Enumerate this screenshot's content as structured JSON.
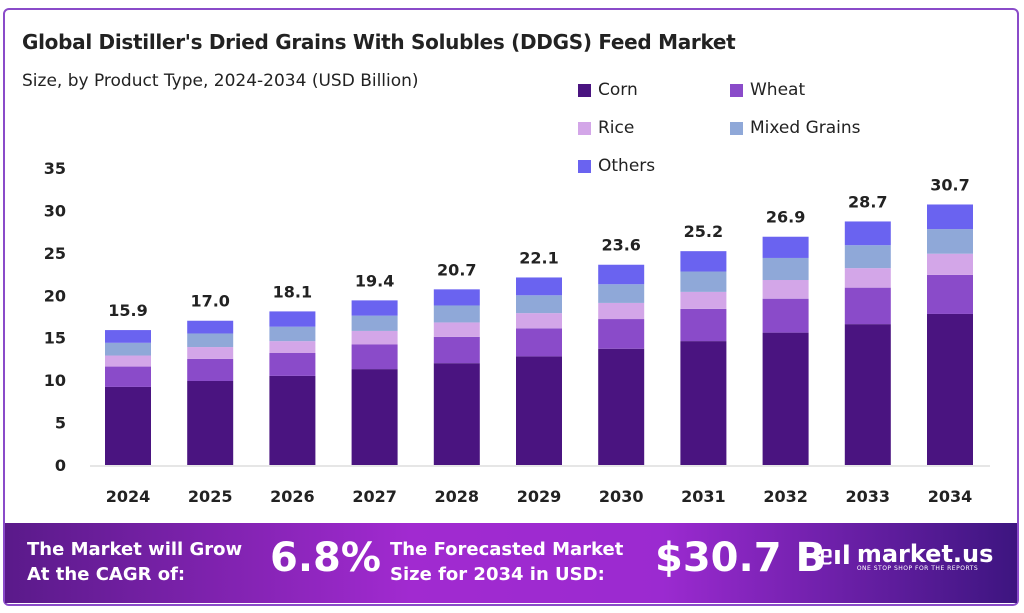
{
  "chart_data": {
    "type": "bar",
    "stacked": true,
    "title": "Global Distiller's Dried Grains With Solubles (DDGS) Feed Market",
    "subtitle": "Size, by Product Type, 2024-2034 (USD Billion)",
    "categories": [
      "2024",
      "2025",
      "2026",
      "2027",
      "2028",
      "2029",
      "2030",
      "2031",
      "2032",
      "2033",
      "2034"
    ],
    "totals": [
      "15.9",
      "17.0",
      "18.1",
      "19.4",
      "20.7",
      "22.1",
      "23.6",
      "25.2",
      "26.9",
      "28.7",
      "30.7"
    ],
    "series": [
      {
        "name": "Corn",
        "color": "#4a1480",
        "values": [
          9.2,
          9.9,
          10.5,
          11.3,
          12.0,
          12.8,
          13.7,
          14.6,
          15.6,
          16.6,
          17.8
        ]
      },
      {
        "name": "Wheat",
        "color": "#8a4bc9",
        "values": [
          2.4,
          2.6,
          2.7,
          2.9,
          3.1,
          3.3,
          3.5,
          3.8,
          4.0,
          4.3,
          4.6
        ]
      },
      {
        "name": "Rice",
        "color": "#d3a6e8",
        "values": [
          1.3,
          1.4,
          1.4,
          1.6,
          1.7,
          1.8,
          1.9,
          2.0,
          2.2,
          2.3,
          2.5
        ]
      },
      {
        "name": "Mixed Grains",
        "color": "#8fa8d8",
        "values": [
          1.5,
          1.6,
          1.7,
          1.8,
          2.0,
          2.1,
          2.2,
          2.4,
          2.6,
          2.7,
          2.9
        ]
      },
      {
        "name": "Others",
        "color": "#6a63f0",
        "values": [
          1.5,
          1.5,
          1.8,
          1.8,
          1.9,
          2.1,
          2.3,
          2.4,
          2.5,
          2.8,
          2.9
        ]
      }
    ],
    "yticks": [
      "0",
      "5",
      "10",
      "15",
      "20",
      "25",
      "30",
      "35"
    ],
    "ylim": [
      0,
      35
    ],
    "grid": false,
    "legend_placement": "top-right"
  },
  "banner": {
    "cagr_text_1": "The Market will Grow",
    "cagr_text_2": "At the CAGR of:",
    "cagr_value": "6.8%",
    "forecast_text_1": "The Forecasted Market",
    "forecast_text_2": "Size for 2034 in USD:",
    "forecast_value": "$30.7 B",
    "logo_name": "market.us",
    "logo_tagline": "ONE STOP SHOP FOR THE REPORTS"
  }
}
